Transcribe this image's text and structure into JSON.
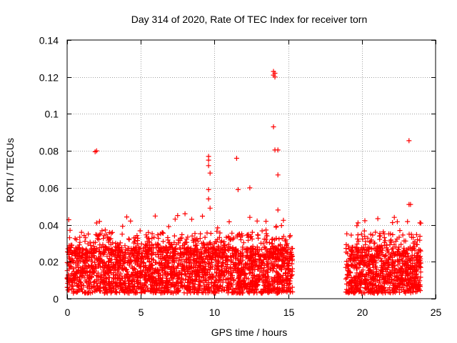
{
  "chart_data": {
    "type": "scatter",
    "title": "Day 314 of 2020, Rate Of TEC Index for receiver torn",
    "xlabel": "GPS time / hours",
    "ylabel": "ROTI / TECUs",
    "xlim": [
      0,
      25
    ],
    "ylim": [
      0,
      0.14
    ],
    "xticks": [
      0,
      5,
      10,
      15,
      20,
      25
    ],
    "xtick_labels": [
      "0",
      "5",
      "10",
      "15",
      "20",
      "25"
    ],
    "yticks": [
      0,
      0.02,
      0.04,
      0.06,
      0.08,
      0.1,
      0.12,
      0.14
    ],
    "ytick_labels": [
      "0",
      "0.02",
      "0.04",
      "0.06",
      "0.08",
      "0.1",
      "0.12",
      "0.14"
    ],
    "grid": true,
    "marker": "+",
    "color": "#ff0000",
    "data_segments": [
      {
        "x_start": 0.0,
        "x_end": 15.3,
        "typical_range": [
          0.003,
          0.028
        ],
        "envelope_max": 0.045
      },
      {
        "x_start": 18.9,
        "x_end": 24.0,
        "typical_range": [
          0.003,
          0.028
        ],
        "envelope_max": 0.044
      }
    ],
    "notable_points": [
      {
        "x": 0.2,
        "y": 0.037
      },
      {
        "x": 1.9,
        "y": 0.0795
      },
      {
        "x": 2.0,
        "y": 0.08
      },
      {
        "x": 2.0,
        "y": 0.041
      },
      {
        "x": 4.3,
        "y": 0.042
      },
      {
        "x": 7.5,
        "y": 0.045
      },
      {
        "x": 8.0,
        "y": 0.046
      },
      {
        "x": 9.6,
        "y": 0.077
      },
      {
        "x": 9.6,
        "y": 0.075
      },
      {
        "x": 9.6,
        "y": 0.072
      },
      {
        "x": 9.7,
        "y": 0.068
      },
      {
        "x": 9.6,
        "y": 0.059
      },
      {
        "x": 9.6,
        "y": 0.054
      },
      {
        "x": 9.7,
        "y": 0.049
      },
      {
        "x": 11.5,
        "y": 0.076
      },
      {
        "x": 11.6,
        "y": 0.059
      },
      {
        "x": 12.4,
        "y": 0.06
      },
      {
        "x": 12.4,
        "y": 0.044
      },
      {
        "x": 14.0,
        "y": 0.123
      },
      {
        "x": 14.1,
        "y": 0.122
      },
      {
        "x": 14.0,
        "y": 0.121
      },
      {
        "x": 14.1,
        "y": 0.12
      },
      {
        "x": 14.0,
        "y": 0.093
      },
      {
        "x": 14.1,
        "y": 0.0805
      },
      {
        "x": 14.3,
        "y": 0.0805
      },
      {
        "x": 14.3,
        "y": 0.067
      },
      {
        "x": 14.3,
        "y": 0.048
      },
      {
        "x": 22.2,
        "y": 0.044
      },
      {
        "x": 23.2,
        "y": 0.0855
      },
      {
        "x": 23.2,
        "y": 0.051
      },
      {
        "x": 23.3,
        "y": 0.051
      }
    ]
  }
}
